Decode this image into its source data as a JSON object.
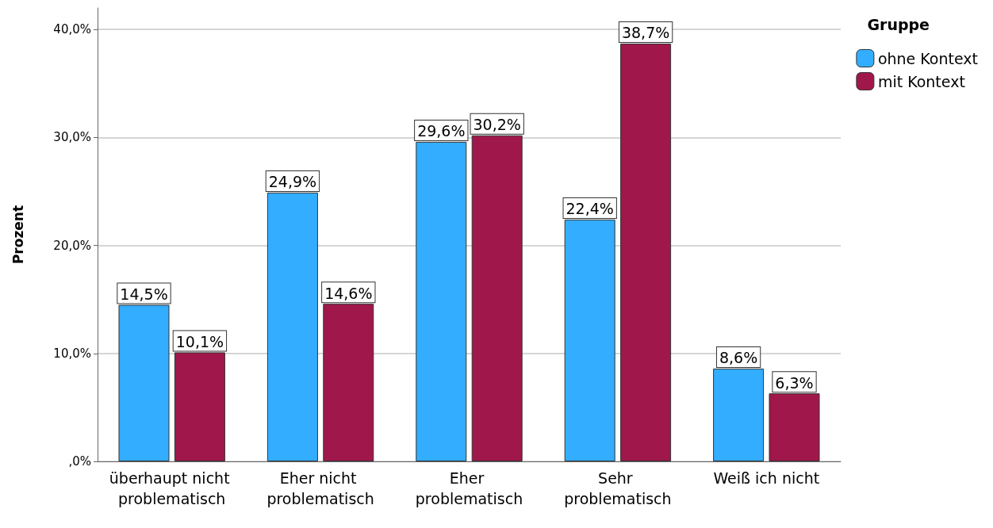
{
  "chart_data": {
    "type": "bar",
    "ylabel": "Prozent",
    "legend_title": "Gruppe",
    "legend": "top right",
    "grid": "y",
    "categories": [
      "überhaupt nicht problematisch",
      "Eher nicht problematisch",
      "Eher problematisch",
      "Sehr problematisch",
      "Weiß ich nicht"
    ],
    "series": [
      {
        "name": "ohne Kontext",
        "color": "#33adff",
        "values": [
          14.5,
          24.9,
          29.6,
          22.4,
          8.6
        ],
        "value_labels": [
          "14,5%",
          "24,9%",
          "29,6%",
          "22,4%",
          "8,6%"
        ]
      },
      {
        "name": "mit Kontext",
        "color": "#a0174b",
        "values": [
          10.1,
          14.6,
          30.2,
          38.7,
          6.3
        ],
        "value_labels": [
          "10,1%",
          "14,6%",
          "30,2%",
          "38,7%",
          "6,3%"
        ]
      }
    ],
    "ylim": [
      0,
      42
    ],
    "yticks": [
      {
        "value": 0,
        "label": ",0%"
      },
      {
        "value": 10,
        "label": "10,0%"
      },
      {
        "value": 20,
        "label": "20,0%"
      },
      {
        "value": 30,
        "label": "30,0%"
      },
      {
        "value": 40,
        "label": "40,0%"
      }
    ]
  }
}
